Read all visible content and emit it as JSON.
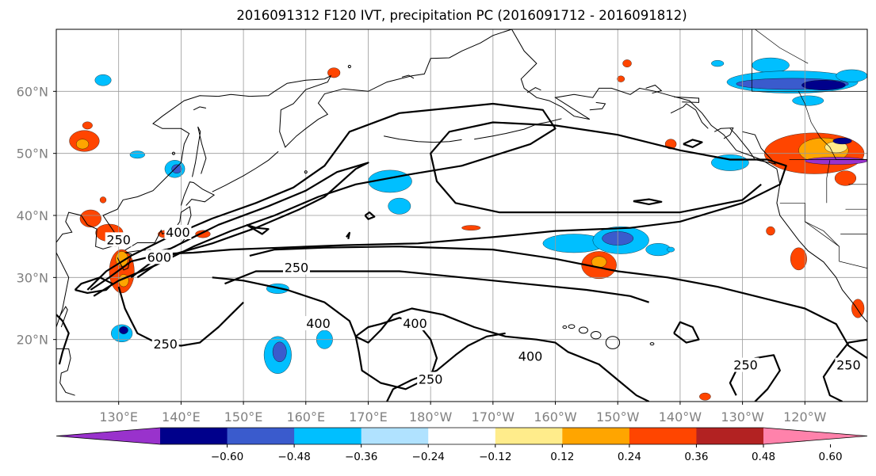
{
  "title": "2016091312 F120 IVT, precipitation PC (2016091712 - 2016091812)",
  "map": {
    "projection": "PlateCarree",
    "lon_range": [
      120,
      250
    ],
    "lat_range": [
      10,
      70
    ],
    "lat_ticks": [
      {
        "lat": 20,
        "label": "20°N"
      },
      {
        "lat": 30,
        "label": "30°N"
      },
      {
        "lat": 40,
        "label": "40°N"
      },
      {
        "lat": 50,
        "label": "50°N"
      },
      {
        "lat": 60,
        "label": "60°N"
      }
    ],
    "lon_ticks": [
      {
        "lon": 130,
        "label": "130°E"
      },
      {
        "lon": 140,
        "label": "140°E"
      },
      {
        "lon": 150,
        "label": "150°E"
      },
      {
        "lon": 160,
        "label": "160°E"
      },
      {
        "lon": 170,
        "label": "170°E"
      },
      {
        "lon": 180,
        "label": "180°W"
      },
      {
        "lon": 190,
        "label": "170°W"
      },
      {
        "lon": 200,
        "label": "160°W"
      },
      {
        "lon": 210,
        "label": "150°W"
      },
      {
        "lon": 220,
        "label": "140°W"
      },
      {
        "lon": 230,
        "label": "130°W"
      },
      {
        "lon": 240,
        "label": "120°W"
      }
    ],
    "grid": true,
    "ivt_contour_labels": [
      {
        "text": "250",
        "lon": 130,
        "lat": 36
      },
      {
        "text": "400",
        "lon": 139.5,
        "lat": 37.2
      },
      {
        "text": "600",
        "lon": 136.5,
        "lat": 33.2
      },
      {
        "text": "250",
        "lon": 158.5,
        "lat": 31.5
      },
      {
        "text": "400",
        "lon": 162,
        "lat": 22.5
      },
      {
        "text": "250",
        "lon": 137.5,
        "lat": 19.2
      },
      {
        "text": "400",
        "lon": 177.5,
        "lat": 22.5
      },
      {
        "text": "250",
        "lon": 180,
        "lat": 13.5
      },
      {
        "text": "400",
        "lon": 196,
        "lat": 17.2
      },
      {
        "text": "250",
        "lon": 230.5,
        "lat": 15.8
      },
      {
        "text": "250",
        "lon": 247,
        "lat": 15.8
      }
    ]
  },
  "colorbar": {
    "levels": [
      -0.6,
      -0.48,
      -0.36,
      -0.24,
      -0.12,
      0.12,
      0.24,
      0.36,
      0.48,
      0.6
    ],
    "labels": [
      "−0.60",
      "−0.48",
      "−0.36",
      "−0.24",
      "−0.12",
      "0.12",
      "0.24",
      "0.36",
      "0.48",
      "0.60"
    ],
    "colors": [
      "#9932cc",
      "#00008b",
      "#3a5bcd",
      "#00bfff",
      "#b0e2ff",
      "#ffffff",
      "#ffec8b",
      "#ffa500",
      "#ff4500",
      "#b22222",
      "#ff82ab"
    ],
    "extend": "both"
  },
  "precip_blobs": [
    {
      "lon": 124.5,
      "lat": 52.0,
      "rx": 2.4,
      "ry": 1.7,
      "level": 3
    },
    {
      "lon": 124.2,
      "lat": 51.5,
      "rx": 1.0,
      "ry": 0.8,
      "level": 2
    },
    {
      "lon": 125.5,
      "lat": 39.5,
      "rx": 1.7,
      "ry": 1.4,
      "level": 3
    },
    {
      "lon": 128.5,
      "lat": 37.2,
      "rx": 2.2,
      "ry": 1.4,
      "level": 3
    },
    {
      "lon": 129.5,
      "lat": 35.8,
      "rx": 1.0,
      "ry": 0.8,
      "level": 1
    },
    {
      "lon": 130.5,
      "lat": 31.0,
      "rx": 2.0,
      "ry": 3.5,
      "level": 3
    },
    {
      "lon": 130.5,
      "lat": 33.0,
      "rx": 1.0,
      "ry": 1.2,
      "level": 2
    },
    {
      "lon": 130.8,
      "lat": 29.5,
      "rx": 0.8,
      "ry": 1.0,
      "level": 2
    },
    {
      "lon": 125.0,
      "lat": 54.5,
      "rx": 0.8,
      "ry": 0.6,
      "level": 3
    },
    {
      "lon": 127.5,
      "lat": 42.5,
      "rx": 0.5,
      "ry": 0.5,
      "level": 3
    },
    {
      "lon": 137.5,
      "lat": 37.0,
      "rx": 1.2,
      "ry": 0.6,
      "level": 3
    },
    {
      "lon": 143.5,
      "lat": 37.0,
      "rx": 1.2,
      "ry": 0.6,
      "level": 3
    },
    {
      "lon": 164.5,
      "lat": 63.0,
      "rx": 1.0,
      "ry": 0.8,
      "level": 3
    },
    {
      "lon": 186.5,
      "lat": 38.0,
      "rx": 1.5,
      "ry": 0.4,
      "level": 3
    },
    {
      "lon": 207.0,
      "lat": 32.0,
      "rx": 2.8,
      "ry": 2.2,
      "level": 3
    },
    {
      "lon": 207.0,
      "lat": 32.5,
      "rx": 1.2,
      "ry": 0.9,
      "level": 2
    },
    {
      "lon": 211.5,
      "lat": 64.5,
      "rx": 0.7,
      "ry": 0.6,
      "level": 3
    },
    {
      "lon": 218.5,
      "lat": 51.5,
      "rx": 0.9,
      "ry": 0.8,
      "level": 3
    },
    {
      "lon": 241.5,
      "lat": 50.0,
      "rx": 8.0,
      "ry": 3.3,
      "level": 3
    },
    {
      "lon": 243.0,
      "lat": 50.5,
      "rx": 4.0,
      "ry": 2.0,
      "level": 2
    },
    {
      "lon": 245.0,
      "lat": 51.0,
      "rx": 1.8,
      "ry": 0.9,
      "level": 1
    },
    {
      "lon": 246.5,
      "lat": 46.0,
      "rx": 1.7,
      "ry": 1.2,
      "level": 3
    },
    {
      "lon": 239.0,
      "lat": 33.0,
      "rx": 1.3,
      "ry": 1.8,
      "level": 3
    },
    {
      "lon": 234.5,
      "lat": 37.5,
      "rx": 0.7,
      "ry": 0.7,
      "level": 3
    },
    {
      "lon": 248.5,
      "lat": 25.0,
      "rx": 1.0,
      "ry": 1.5,
      "level": 3
    },
    {
      "lon": 224.0,
      "lat": 10.8,
      "rx": 0.9,
      "ry": 0.6,
      "level": 3
    },
    {
      "lon": 210.5,
      "lat": 62.0,
      "rx": 0.6,
      "ry": 0.5,
      "level": 3
    },
    {
      "lon": 127.5,
      "lat": 61.8,
      "rx": 1.3,
      "ry": 0.9,
      "level": -2
    },
    {
      "lon": 133.0,
      "lat": 49.8,
      "rx": 1.2,
      "ry": 0.6,
      "level": -2
    },
    {
      "lon": 139.0,
      "lat": 47.5,
      "rx": 1.6,
      "ry": 1.4,
      "level": -2
    },
    {
      "lon": 139.3,
      "lat": 47.5,
      "rx": 0.8,
      "ry": 0.7,
      "level": -3
    },
    {
      "lon": 130.5,
      "lat": 21.0,
      "rx": 1.7,
      "ry": 1.4,
      "level": -2
    },
    {
      "lon": 130.8,
      "lat": 21.5,
      "rx": 0.7,
      "ry": 0.6,
      "level": -4
    },
    {
      "lon": 155.5,
      "lat": 17.5,
      "rx": 2.2,
      "ry": 3.0,
      "level": -2
    },
    {
      "lon": 155.8,
      "lat": 18.0,
      "rx": 1.1,
      "ry": 1.6,
      "level": -3
    },
    {
      "lon": 155.5,
      "lat": 28.2,
      "rx": 1.8,
      "ry": 0.8,
      "level": -2
    },
    {
      "lon": 163.0,
      "lat": 20.0,
      "rx": 1.3,
      "ry": 1.5,
      "level": -2
    },
    {
      "lon": 173.5,
      "lat": 45.5,
      "rx": 3.5,
      "ry": 1.8,
      "level": -2
    },
    {
      "lon": 175.0,
      "lat": 41.5,
      "rx": 1.8,
      "ry": 1.3,
      "level": -2
    },
    {
      "lon": 203.0,
      "lat": 35.5,
      "rx": 5.0,
      "ry": 1.5,
      "level": -2
    },
    {
      "lon": 210.5,
      "lat": 36.0,
      "rx": 4.5,
      "ry": 2.2,
      "level": -2
    },
    {
      "lon": 210.0,
      "lat": 36.3,
      "rx": 2.5,
      "ry": 1.1,
      "level": -3
    },
    {
      "lon": 216.5,
      "lat": 34.5,
      "rx": 2.0,
      "ry": 1.0,
      "level": -2
    },
    {
      "lon": 228.0,
      "lat": 48.5,
      "rx": 3.0,
      "ry": 1.3,
      "level": -2
    },
    {
      "lon": 234.5,
      "lat": 64.2,
      "rx": 3.0,
      "ry": 1.2,
      "level": -2
    },
    {
      "lon": 238.0,
      "lat": 61.5,
      "rx": 10.5,
      "ry": 1.8,
      "level": -2
    },
    {
      "lon": 238.0,
      "lat": 61.2,
      "rx": 9.0,
      "ry": 0.9,
      "level": -3
    },
    {
      "lon": 243.0,
      "lat": 61.0,
      "rx": 3.5,
      "ry": 0.8,
      "level": -4
    },
    {
      "lon": 247.5,
      "lat": 62.5,
      "rx": 2.5,
      "ry": 1.0,
      "level": -2
    },
    {
      "lon": 226.0,
      "lat": 64.5,
      "rx": 1.0,
      "ry": 0.5,
      "level": -2
    },
    {
      "lon": 218.5,
      "lat": 34.5,
      "rx": 0.6,
      "ry": 0.4,
      "level": -2
    },
    {
      "lon": 240.5,
      "lat": 58.5,
      "rx": 2.5,
      "ry": 0.8,
      "level": -2
    },
    {
      "lon": 246.0,
      "lat": 52.0,
      "rx": 1.5,
      "ry": 0.5,
      "level": -4
    },
    {
      "lon": 245.0,
      "lat": 48.8,
      "rx": 5.0,
      "ry": 0.6,
      "level": -5
    }
  ]
}
